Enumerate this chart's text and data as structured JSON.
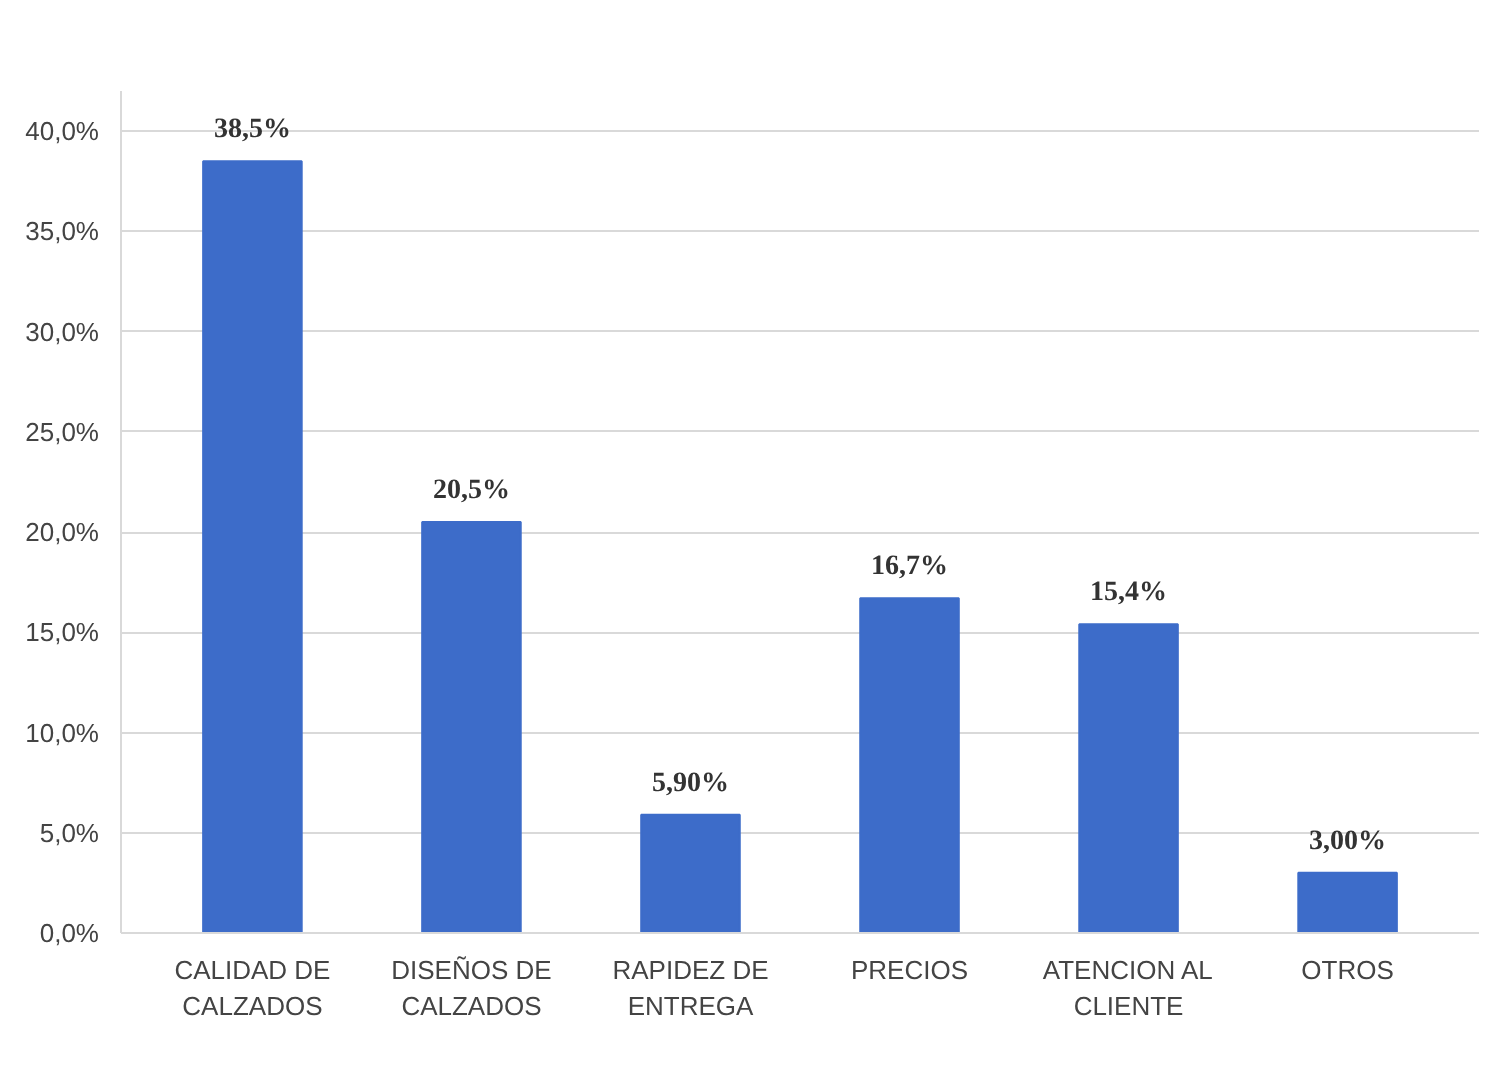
{
  "chart_data": {
    "type": "bar",
    "categories": [
      "CALIDAD DE\nCALZADOS",
      "DISEÑOS DE\nCALZADOS",
      "RAPIDEZ DE\nENTREGA",
      "PRECIOS",
      "ATENCION AL\nCLIENTE",
      "OTROS"
    ],
    "values": [
      38.5,
      20.5,
      5.9,
      16.7,
      15.4,
      3.0
    ],
    "value_labels": [
      "38,5%",
      "20,5%",
      "5,90%",
      "16,7%",
      "15,4%",
      "3,00%"
    ],
    "color": "#3d6cc9",
    "ylim": [
      0,
      42
    ],
    "yticks": [
      {
        "value": 0,
        "label": "0,0%"
      },
      {
        "value": 5,
        "label": "5,0%"
      },
      {
        "value": 10,
        "label": "10,0%"
      },
      {
        "value": 15,
        "label": "15,0%"
      },
      {
        "value": 20,
        "label": "20,0%"
      },
      {
        "value": 25,
        "label": "25,0%"
      },
      {
        "value": 30,
        "label": "30,0%"
      },
      {
        "value": 35,
        "label": "35,0%"
      },
      {
        "value": 40,
        "label": "40,0%"
      }
    ],
    "grid": "y"
  }
}
